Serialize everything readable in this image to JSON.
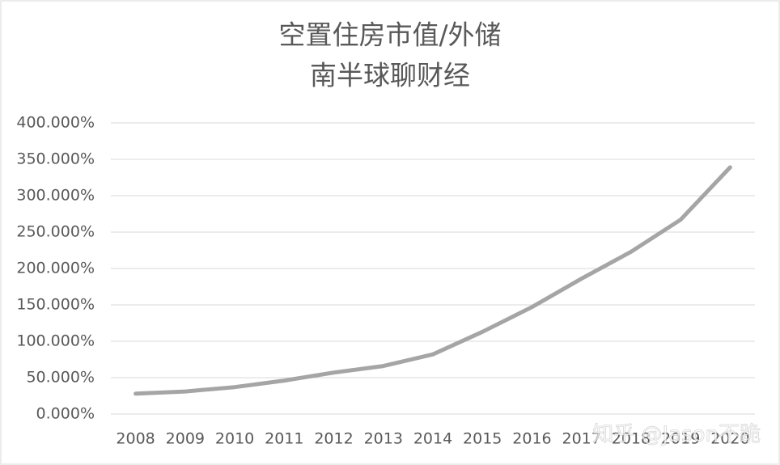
{
  "chart_data": {
    "type": "line",
    "title": [
      "空置住房市值/外储",
      "南半球聊财经"
    ],
    "categories": [
      "2008",
      "2009",
      "2010",
      "2011",
      "2012",
      "2013",
      "2014",
      "2015",
      "2016",
      "2017",
      "2018",
      "2019",
      "2020"
    ],
    "series": [
      {
        "color": "#a5a5a5",
        "values": [
          28,
          31,
          37,
          46,
          57,
          66,
          82,
          113,
          147,
          186,
          223,
          267,
          339
        ]
      }
    ],
    "ylim": [
      0,
      400
    ],
    "yticks": [
      {
        "value": 0,
        "label": "0.000%"
      },
      {
        "value": 50,
        "label": "50.000%"
      },
      {
        "value": 100,
        "label": "100.000%"
      },
      {
        "value": 150,
        "label": "150.000%"
      },
      {
        "value": 200,
        "label": "200.000%"
      },
      {
        "value": 250,
        "label": "250.000%"
      },
      {
        "value": 300,
        "label": "300.000%"
      },
      {
        "value": 350,
        "label": "350.000%"
      },
      {
        "value": 400,
        "label": "400.000%"
      }
    ],
    "grid": true,
    "watermark": "知乎 @Jason不跪"
  }
}
